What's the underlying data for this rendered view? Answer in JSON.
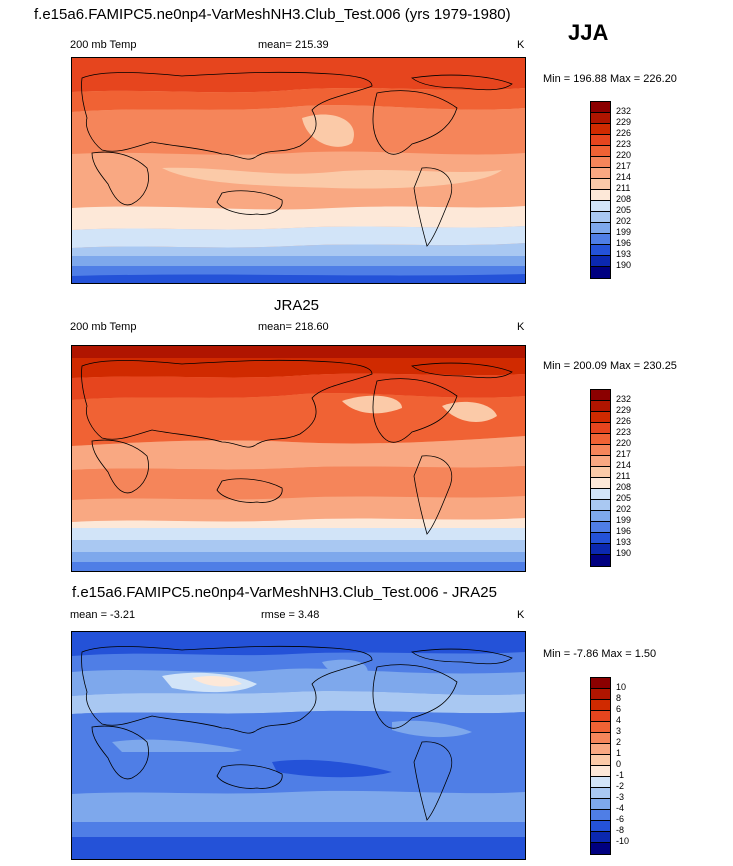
{
  "season": "JJA",
  "panels": [
    {
      "title": "f.e15a6.FAMIPC5.ne0np4-VarMeshNH3.Club_Test.006 (yrs 1979-1980)",
      "left_label": "200 mb Temp",
      "center_label": "mean= 215.39",
      "units": "K",
      "minmax": "Min = 196.88 Max = 226.20"
    },
    {
      "title": "JRA25",
      "left_label": "200 mb Temp",
      "center_label": "mean= 218.60",
      "units": "K",
      "minmax": "Min = 200.09 Max = 230.25"
    },
    {
      "title": "f.e15a6.FAMIPC5.ne0np4-VarMeshNH3.Club_Test.006 - JRA25",
      "left_label": "mean =  -3.21",
      "center_label": "rmse =   3.48",
      "units": "K",
      "minmax": "Min =  -7.86 Max =   1.50"
    }
  ],
  "colorbar_abs": {
    "levels": [
      "232",
      "229",
      "226",
      "223",
      "220",
      "217",
      "214",
      "211",
      "208",
      "205",
      "202",
      "199",
      "196",
      "193",
      "190"
    ],
    "colors": [
      "#8b0000",
      "#b01500",
      "#d02a00",
      "#e6451e",
      "#f06234",
      "#f5855a",
      "#f9a882",
      "#fbcaa8",
      "#fde8d8",
      "#d2e4f8",
      "#a9c8f2",
      "#7ea8ec",
      "#4f7ee6",
      "#2452d8",
      "#0b28b0",
      "#000080"
    ]
  },
  "colorbar_diff": {
    "levels": [
      "10",
      "8",
      "6",
      "4",
      "3",
      "2",
      "1",
      "0",
      "-1",
      "-2",
      "-3",
      "-4",
      "-6",
      "-8",
      "-10"
    ],
    "colors": [
      "#8b0000",
      "#b01500",
      "#d02a00",
      "#e6451e",
      "#f06234",
      "#f5855a",
      "#f9a882",
      "#fbcaa8",
      "#fde8d8",
      "#d2e4f8",
      "#a9c8f2",
      "#7ea8ec",
      "#4f7ee6",
      "#2452d8",
      "#0b28b0",
      "#000080"
    ]
  }
}
